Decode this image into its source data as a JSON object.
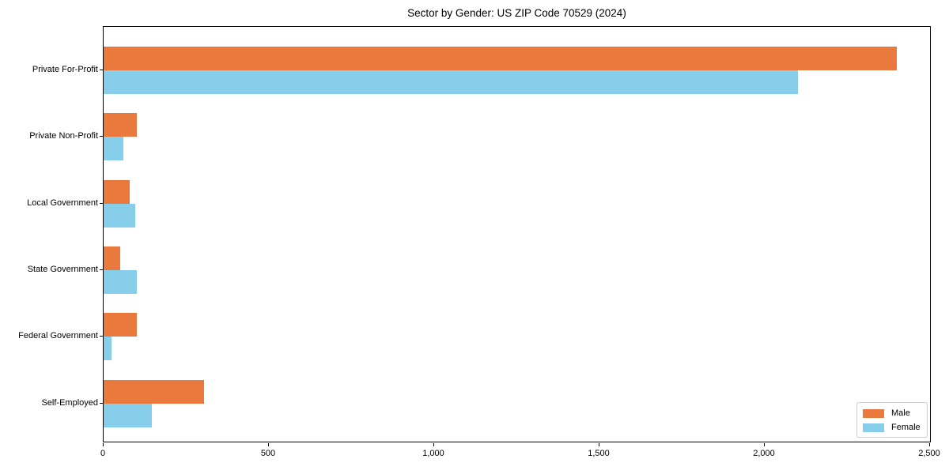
{
  "chart_data": {
    "type": "bar",
    "orientation": "horizontal",
    "title": "Sector by Gender: US ZIP Code 70529 (2024)",
    "categories": [
      "Private For-Profit",
      "Private Non-Profit",
      "Local Government",
      "State Government",
      "Federal Government",
      "Self-Employed"
    ],
    "series": [
      {
        "name": "Male",
        "color": "#e9793d",
        "values": [
          2400,
          100,
          80,
          50,
          100,
          305
        ]
      },
      {
        "name": "Female",
        "color": "#87ceeb",
        "values": [
          2100,
          60,
          95,
          100,
          25,
          145
        ]
      }
    ],
    "xlabel": "",
    "ylabel": "",
    "xlim": [
      0,
      2500
    ],
    "xticks": [
      0,
      500,
      1000,
      1500,
      2000,
      2500
    ],
    "xtick_labels": [
      "0",
      "500",
      "1,000",
      "1,500",
      "2,000",
      "2,500"
    ],
    "grid": false,
    "legend_position": "lower right",
    "plot_border_color": "#000000",
    "text_color": "#000000"
  }
}
